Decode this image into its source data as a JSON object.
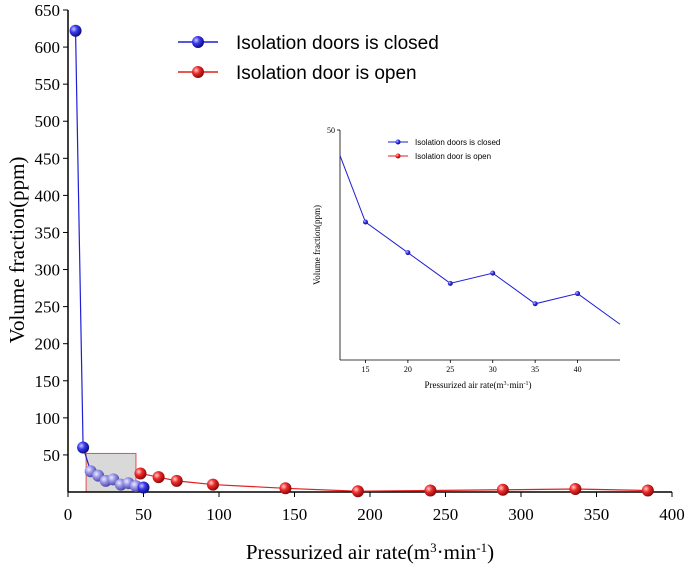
{
  "chart_data": [
    {
      "type": "line",
      "xlabel": "Pressurized air rate(m³·min⁻¹)",
      "ylabel": "Volume fraction(ppm)",
      "xlim": [
        0,
        400
      ],
      "ylim": [
        0,
        650
      ],
      "xticks": [
        "0",
        "50",
        "100",
        "150",
        "200",
        "250",
        "300",
        "350",
        "400"
      ],
      "yticks": [
        "50",
        "100",
        "150",
        "200",
        "250",
        "300",
        "350",
        "400",
        "450",
        "500",
        "550",
        "600",
        "650"
      ],
      "grid": false,
      "legend_position": "top-center",
      "highlight_box": {
        "x": [
          12,
          45
        ],
        "y": [
          0,
          52
        ]
      },
      "series": [
        {
          "name": "Isolation doors is closed",
          "color": "#1f1fd6",
          "x": [
            5,
            10,
            15,
            20,
            25,
            30,
            35,
            40,
            45,
            50
          ],
          "y": [
            622,
            60,
            28,
            22,
            15,
            17,
            10,
            12,
            8,
            6
          ]
        },
        {
          "name": "Isolation door is open",
          "color": "#e11f1f",
          "x": [
            48,
            60,
            72,
            96,
            144,
            192,
            240,
            288,
            336,
            384
          ],
          "y": [
            25,
            20,
            15,
            10,
            5,
            1,
            2,
            3,
            4,
            2
          ]
        }
      ]
    },
    {
      "type": "line",
      "xlabel": "Pressurized air rate(m³·min⁻¹)",
      "ylabel": "Volume fraction(ppm)",
      "xlim": [
        12,
        45
      ],
      "ylim": [
        5,
        50
      ],
      "xticks": [
        "15",
        "20",
        "25",
        "30",
        "35",
        "40"
      ],
      "yticks": [
        "50"
      ],
      "legend_position": "top-center",
      "series": [
        {
          "name": "Isolation doors is closed",
          "color": "#1f1fd6",
          "x": [
            12,
            15,
            20,
            25,
            30,
            35,
            40,
            45
          ],
          "y": [
            45,
            32,
            26,
            20,
            22,
            16,
            18,
            12
          ]
        }
      ],
      "legend_extra": "Isolation door is open"
    }
  ]
}
